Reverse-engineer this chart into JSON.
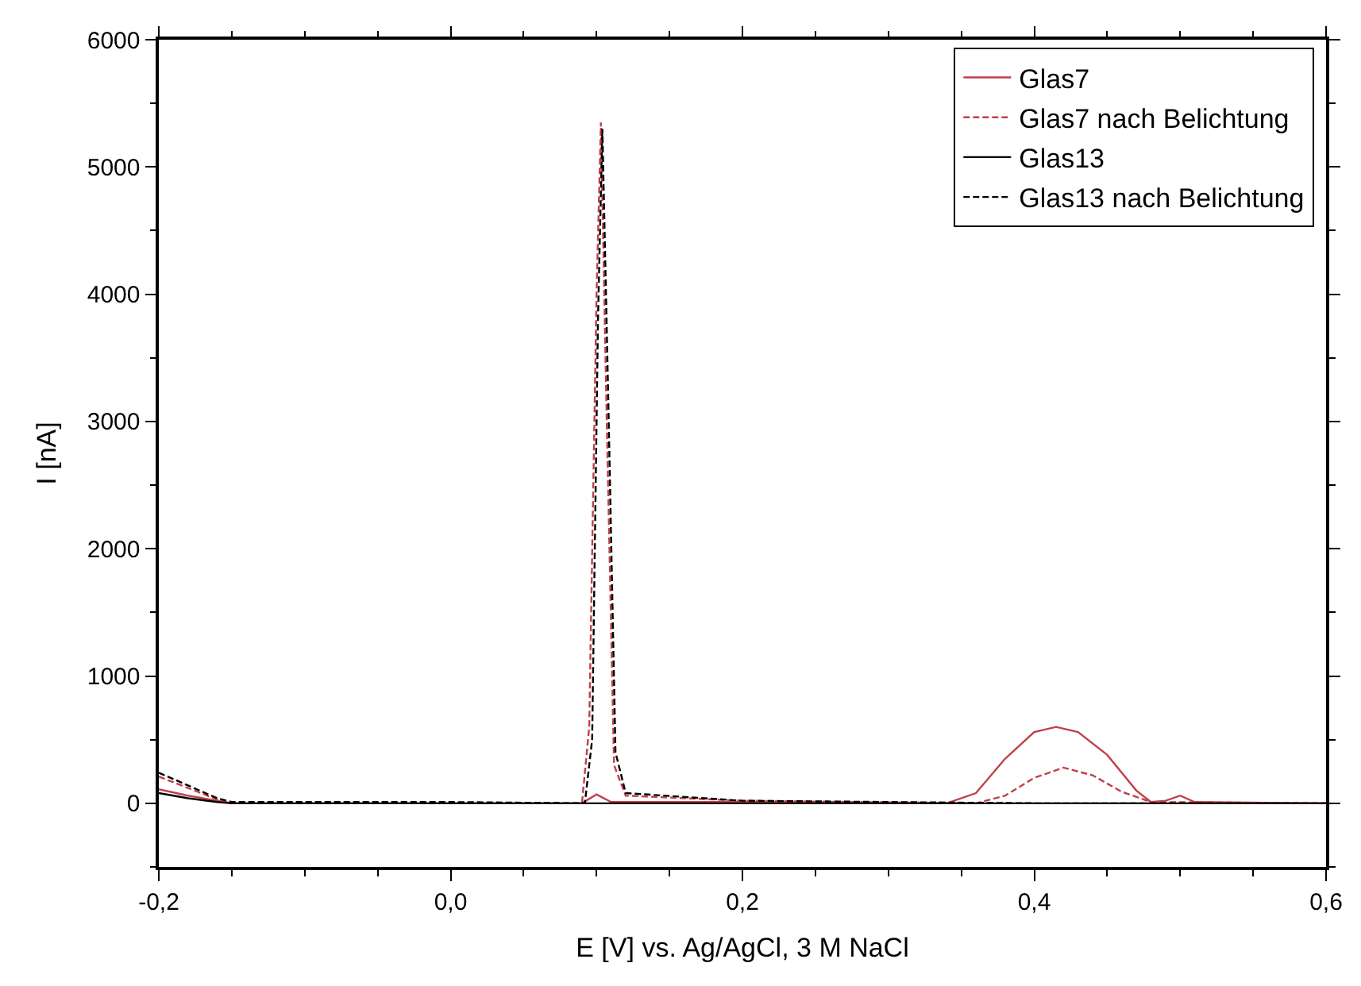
{
  "chart_data": {
    "type": "line",
    "xlabel": "E [V] vs. Ag/AgCl, 3 M NaCl",
    "ylabel": "I [nA]",
    "xlim": [
      -0.2,
      0.6
    ],
    "ylim": [
      -500,
      6000
    ],
    "xticks": [
      {
        "value": -0.2,
        "label": "-0,2"
      },
      {
        "value": 0.0,
        "label": "0,0"
      },
      {
        "value": 0.2,
        "label": "0,2"
      },
      {
        "value": 0.4,
        "label": "0,4"
      },
      {
        "value": 0.6,
        "label": "0,6"
      }
    ],
    "yticks": [
      0,
      1000,
      2000,
      3000,
      4000,
      5000,
      6000
    ],
    "legend": "top right",
    "series": [
      {
        "name": "Glas7",
        "color": "#c0404a",
        "line_style": "solid",
        "x": [
          -0.2,
          -0.18,
          -0.16,
          -0.15,
          0.0,
          0.09,
          0.1,
          0.11,
          0.2,
          0.34,
          0.36,
          0.38,
          0.4,
          0.415,
          0.43,
          0.45,
          0.47,
          0.48,
          0.49,
          0.5,
          0.51,
          0.6
        ],
        "values": [
          110,
          60,
          20,
          0,
          0,
          0,
          70,
          10,
          10,
          0,
          80,
          350,
          560,
          600,
          560,
          380,
          100,
          10,
          20,
          60,
          10,
          0
        ]
      },
      {
        "name": "Glas7 nach Belichtung",
        "color": "#c0404a",
        "line_style": "dashed",
        "x": [
          -0.2,
          -0.18,
          -0.16,
          -0.15,
          0.0,
          0.09,
          0.095,
          0.1,
          0.103,
          0.107,
          0.112,
          0.12,
          0.2,
          0.36,
          0.38,
          0.4,
          0.42,
          0.44,
          0.46,
          0.48,
          0.6
        ],
        "values": [
          210,
          120,
          30,
          0,
          0,
          0,
          600,
          4000,
          5350,
          3000,
          300,
          60,
          20,
          0,
          60,
          200,
          280,
          220,
          90,
          10,
          0
        ]
      },
      {
        "name": "Glas13",
        "color": "#000000",
        "line_style": "solid",
        "x": [
          -0.2,
          -0.18,
          -0.16,
          -0.15,
          0.0,
          0.2,
          0.4,
          0.6
        ],
        "values": [
          80,
          40,
          10,
          0,
          0,
          0,
          0,
          0
        ]
      },
      {
        "name": "Glas13 nach Belichtung",
        "color": "#000000",
        "line_style": "dashed",
        "x": [
          -0.2,
          -0.18,
          -0.16,
          -0.15,
          0.0,
          0.092,
          0.097,
          0.101,
          0.104,
          0.108,
          0.113,
          0.12,
          0.2,
          0.4,
          0.6
        ],
        "values": [
          240,
          140,
          40,
          10,
          10,
          0,
          500,
          3800,
          5300,
          3200,
          400,
          80,
          20,
          0,
          0
        ]
      }
    ]
  }
}
